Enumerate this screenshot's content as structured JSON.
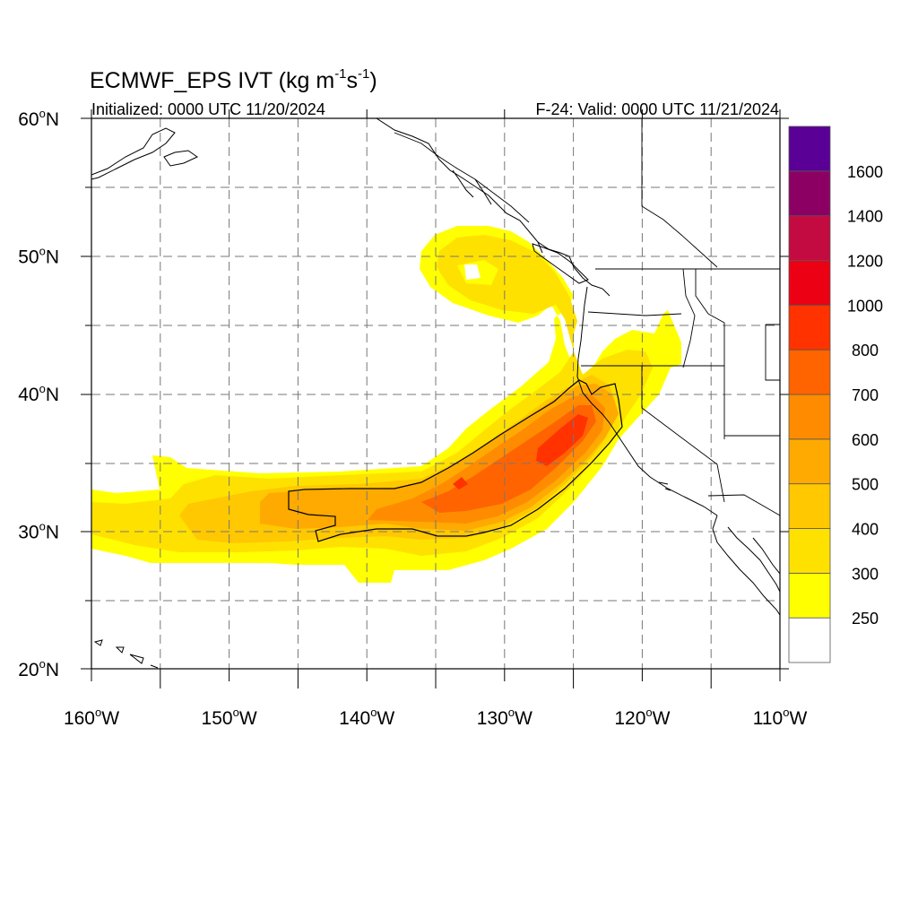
{
  "title": {
    "main": "ECMWF_EPS IVT (kg m",
    "sup1": "-1",
    "mid": "s",
    "sup2": "-1",
    "end": ")"
  },
  "subtitle_left": "Initialized: 0000 UTC 11/20/2024",
  "subtitle_right": "F-24: Valid: 0000 UTC 11/21/2024",
  "map": {
    "lon_range": [
      -160,
      -110
    ],
    "lat_range": [
      20,
      60
    ],
    "grid": "dashed"
  },
  "lat_ticks": [
    {
      "value": 60,
      "label": "60",
      "deg": "o",
      "hemi": "N"
    },
    {
      "value": 50,
      "label": "50",
      "deg": "o",
      "hemi": "N"
    },
    {
      "value": 40,
      "label": "40",
      "deg": "o",
      "hemi": "N"
    },
    {
      "value": 30,
      "label": "30",
      "deg": "o",
      "hemi": "N"
    },
    {
      "value": 20,
      "label": "20",
      "deg": "o",
      "hemi": "N"
    }
  ],
  "lon_ticks": [
    {
      "value": -160,
      "label": "160",
      "deg": "o",
      "hemi": "W"
    },
    {
      "value": -150,
      "label": "150",
      "deg": "o",
      "hemi": "W"
    },
    {
      "value": -140,
      "label": "140",
      "deg": "o",
      "hemi": "W"
    },
    {
      "value": -130,
      "label": "130",
      "deg": "o",
      "hemi": "W"
    },
    {
      "value": -120,
      "label": "120",
      "deg": "o",
      "hemi": "W"
    },
    {
      "value": -110,
      "label": "110",
      "deg": "o",
      "hemi": "W"
    }
  ],
  "colorbar": {
    "levels": [
      "250",
      "300",
      "400",
      "500",
      "600",
      "700",
      "800",
      "1000",
      "1200",
      "1400",
      "1600"
    ],
    "colors": [
      "#ffffff",
      "#ffff00",
      "#ffe100",
      "#ffc800",
      "#ffaa00",
      "#ff8c00",
      "#ff6400",
      "#ff3200",
      "#ec0014",
      "#c30b41",
      "#8c0064",
      "#5a0096"
    ]
  },
  "ivt_plume": {
    "value_units": "kg m-1 s-1",
    "levels_shown": [
      250,
      300,
      400,
      500,
      600,
      700
    ],
    "core": "subtropical Pacific near 30N 140W extending northeast to northern California coast near 38N 123W",
    "secondary_swirl": "circulation centered near 49N 135W off Vancouver Island"
  }
}
